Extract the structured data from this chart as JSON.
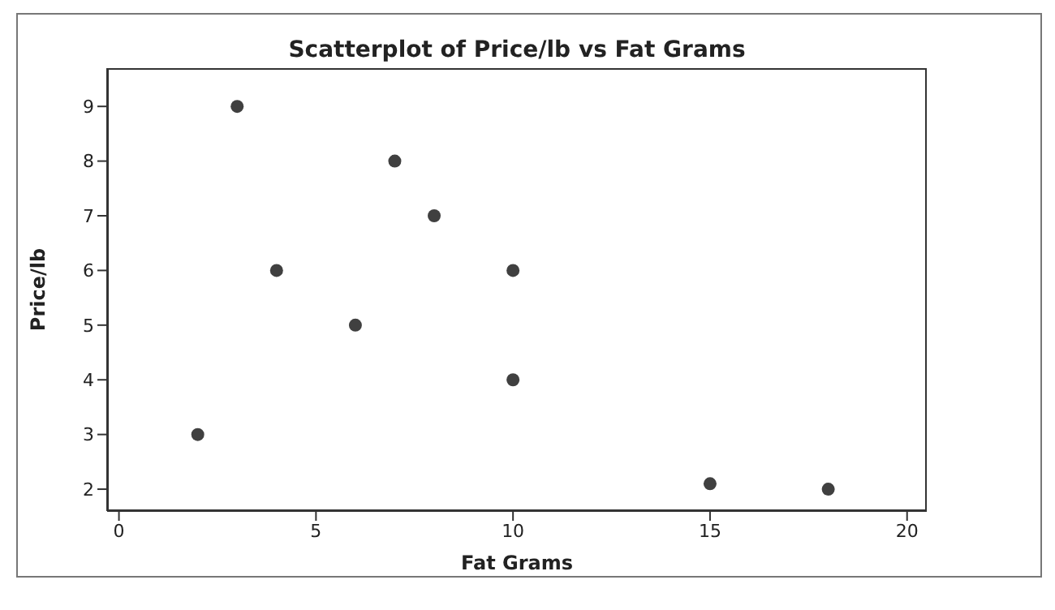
{
  "chart_data": {
    "type": "scatter",
    "title": "Scatterplot of Price/lb vs Fat Grams",
    "xlabel": "Fat Grams",
    "ylabel": "Price/lb",
    "x": [
      2,
      3,
      4,
      6,
      7,
      8,
      10,
      10,
      15,
      18
    ],
    "series": [
      {
        "color": "#404040",
        "values": [
          3,
          9,
          6,
          5,
          8,
          7,
          6,
          4,
          2.1,
          2
        ]
      }
    ],
    "xlim": [
      -0.3,
      20.5
    ],
    "xticks": [
      0,
      5,
      10,
      15,
      20
    ],
    "ylim": [
      1.6,
      9.7
    ],
    "yticks": [
      2,
      3,
      4,
      5,
      6,
      7,
      8,
      9
    ],
    "marker": "circle",
    "grid": false
  }
}
